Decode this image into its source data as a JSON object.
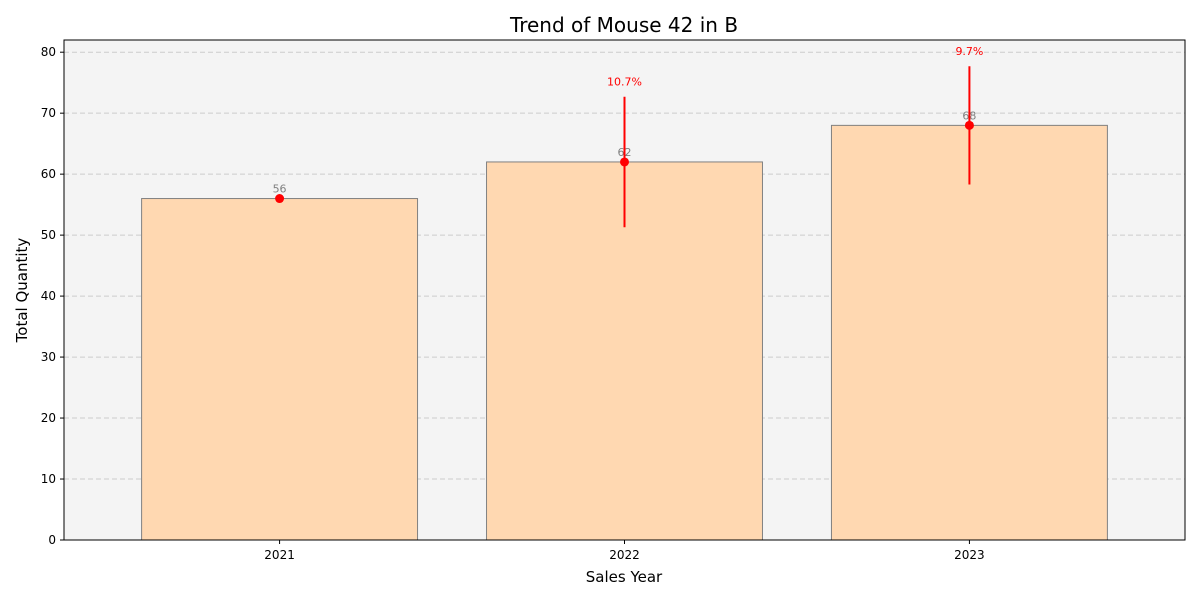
{
  "chart_data": {
    "type": "bar",
    "title": "Trend of Mouse 42 in B",
    "xlabel": "Sales Year",
    "ylabel": "Total Quantity",
    "categories": [
      "2021",
      "2022",
      "2023"
    ],
    "values": [
      56,
      62,
      68
    ],
    "value_labels": [
      "56",
      "62",
      "68"
    ],
    "error_bars": [
      0,
      10.7,
      9.7
    ],
    "growth_labels": [
      "",
      "10.7%",
      "9.7%"
    ],
    "ylim": [
      0,
      82
    ],
    "yticks": [
      0,
      10,
      20,
      30,
      40,
      50,
      60,
      70,
      80
    ],
    "ytick_labels": [
      "0",
      "10",
      "20",
      "30",
      "40",
      "50",
      "60",
      "70",
      "80"
    ],
    "grid": true,
    "colors": {
      "bar_fill": "#ffd8b1",
      "bar_edge": "#808080",
      "bar_label": "#808080",
      "marker": "#ff0000",
      "error_bar": "#ff0000",
      "growth_label": "#ff0000",
      "plot_background": "#f4f4f4",
      "grid": "#cccccc"
    }
  }
}
